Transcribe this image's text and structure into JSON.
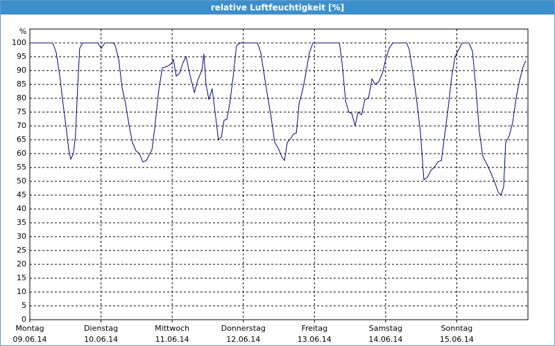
{
  "chart_data": {
    "type": "line",
    "title": "relative Luftfeuchtigkeit [%]",
    "y_label": "%",
    "x": [
      0,
      7.7,
      8.9,
      10.1,
      11.2,
      12.4,
      13.1,
      13.8,
      14.7,
      15.4,
      16.1,
      16.8,
      17.8,
      22.9,
      24.1,
      25.3,
      28.1,
      28.8,
      30.0,
      31.1,
      32.3,
      33.5,
      34.6,
      35.8,
      37.0,
      38.1,
      39.3,
      41.2,
      42.1,
      43.5,
      44.7,
      46.3,
      47.7,
      48.4,
      49.4,
      50.5,
      51.7,
      52.7,
      54.1,
      55.5,
      56.6,
      58.0,
      58.7,
      59.4,
      60.4,
      61.5,
      62.7,
      63.6,
      64.6,
      65.5,
      66.5,
      67.4,
      68.6,
      69.7,
      70.9,
      76.8,
      77.9,
      79.1,
      80.3,
      81.4,
      82.6,
      83.8,
      84.9,
      85.9,
      86.8,
      88.0,
      88.9,
      89.9,
      90.8,
      92.0,
      93.1,
      94.3,
      95.5,
      104.4,
      105.3,
      106.5,
      107.6,
      108.6,
      109.7,
      110.7,
      111.9,
      113.0,
      114.2,
      115.4,
      116.5,
      117.7,
      118.9,
      120.0,
      121.2,
      122.4,
      127.1,
      128.0,
      129.4,
      130.6,
      131.7,
      132.9,
      134.1,
      135.3,
      136.4,
      137.6,
      138.8,
      139.9,
      141.1,
      142.3,
      143.4,
      144.6,
      145.8,
      148.1,
      149.3,
      150.5,
      151.6,
      152.8,
      154.0,
      155.1,
      156.3,
      157.0,
      158.0,
      158.9,
      159.8,
      160.5,
      161.7,
      162.9,
      164.0,
      165.2,
      166.4,
      167.3
    ],
    "series": [
      {
        "color": "#000080",
        "values": [
          100,
          100,
          96.5,
          88,
          78,
          68,
          61.5,
          58,
          60,
          66.5,
          83,
          98,
          100,
          100,
          98,
          100,
          100,
          99,
          94,
          84,
          78,
          70,
          64,
          61,
          60,
          57,
          57.5,
          61.5,
          69,
          83,
          91,
          91.5,
          92.5,
          94,
          88,
          89,
          93,
          95,
          88,
          82,
          86.5,
          90,
          96,
          85,
          79.5,
          83.5,
          73,
          65,
          66,
          72,
          72.5,
          78,
          88,
          99,
          100,
          100,
          96.5,
          88,
          80,
          73,
          64,
          62,
          59,
          57.5,
          64,
          65.5,
          67,
          67.5,
          78,
          83,
          89,
          96.5,
          100,
          100,
          93,
          79,
          75,
          74.5,
          70,
          75,
          74,
          79.5,
          80,
          87,
          85,
          86,
          89,
          94,
          98,
          100,
          100,
          97.5,
          88,
          78,
          68,
          50.5,
          51.5,
          54,
          55,
          57,
          57.5,
          66.5,
          76.5,
          88,
          95,
          97.5,
          100,
          100,
          97,
          83,
          68,
          59,
          56.5,
          54,
          51,
          49,
          46,
          45,
          48,
          64,
          66.5,
          71.5,
          80,
          86.5,
          91.5,
          93.5
        ]
      }
    ],
    "xlim": [
      0,
      168
    ],
    "xticks": [
      {
        "value": 0,
        "label": "Montag"
      },
      {
        "value": 24,
        "label": "Dienstag"
      },
      {
        "value": 48,
        "label": "Mittwoch"
      },
      {
        "value": 72,
        "label": "Donnerstag"
      },
      {
        "value": 96,
        "label": "Freitag"
      },
      {
        "value": 120,
        "label": "Samstag"
      },
      {
        "value": 144,
        "label": "Sonntag"
      }
    ],
    "xtick_dates": [
      "09.06.14",
      "10.06.14",
      "11.06.14",
      "12.06.14",
      "13.06.14",
      "14.06.14",
      "15.06.14"
    ],
    "ylim": [
      0,
      105
    ],
    "yticks": [
      0,
      5,
      10,
      15,
      20,
      25,
      30,
      35,
      40,
      45,
      50,
      55,
      60,
      65,
      70,
      75,
      80,
      85,
      90,
      95,
      100
    ],
    "grid": true
  }
}
